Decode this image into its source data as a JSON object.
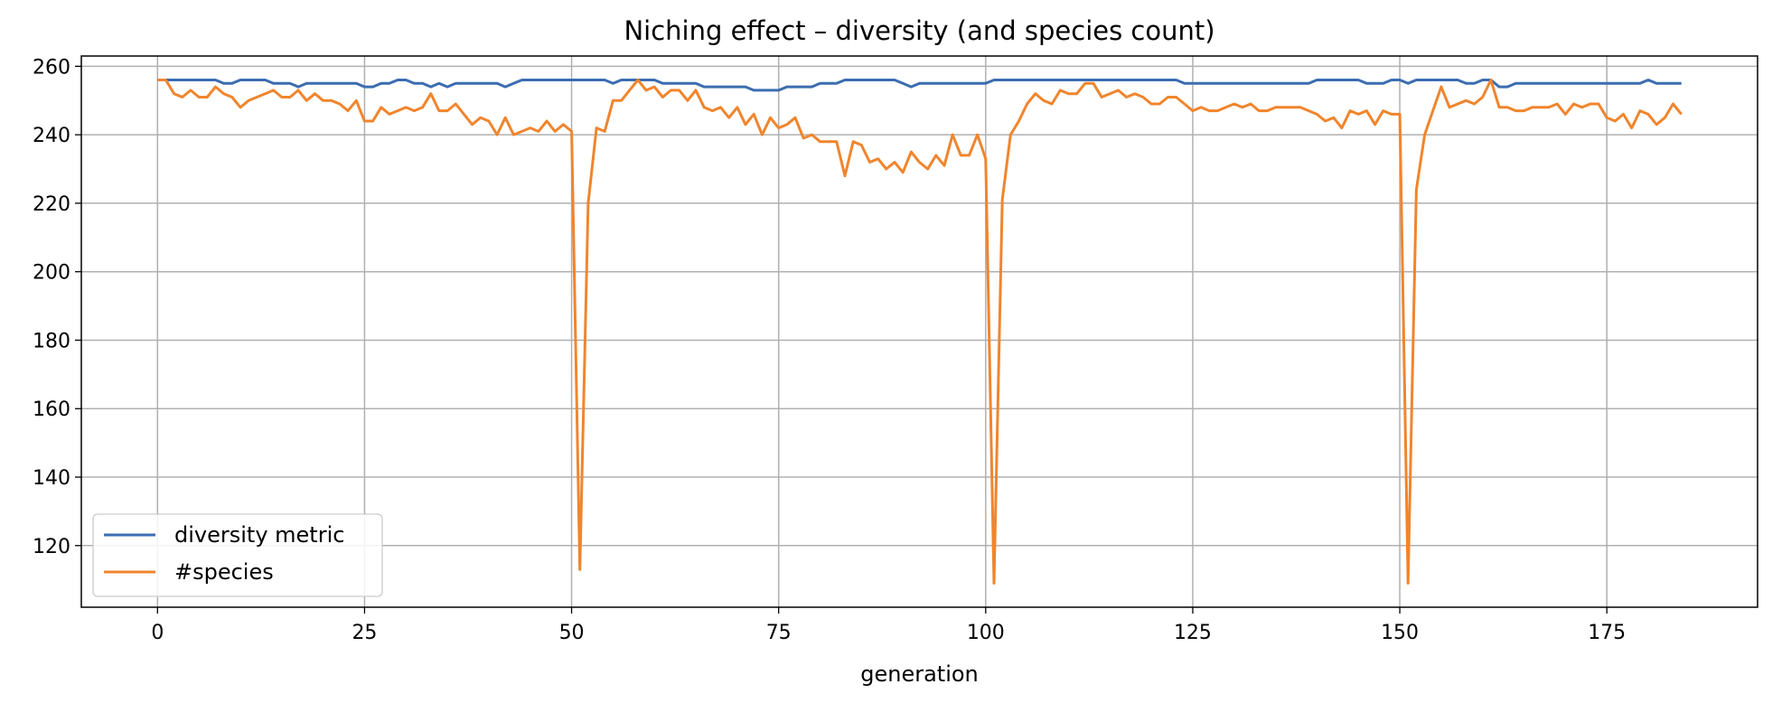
{
  "chart_data": {
    "type": "line",
    "title": "Niching effect – diversity (and species count)",
    "xlabel": "generation",
    "ylabel": "",
    "xlim": [
      -9.2,
      193.2
    ],
    "ylim": [
      102,
      263
    ],
    "xticks": [
      0,
      25,
      50,
      75,
      100,
      125,
      150,
      175
    ],
    "yticks": [
      120,
      140,
      160,
      180,
      200,
      220,
      240,
      260
    ],
    "grid": true,
    "legend_position": "lower-left",
    "series": [
      {
        "name": "diversity metric",
        "color": "#3b6db0",
        "x": [
          0,
          1,
          2,
          3,
          4,
          5,
          6,
          7,
          8,
          9,
          10,
          11,
          12,
          13,
          14,
          15,
          16,
          17,
          18,
          19,
          20,
          21,
          22,
          23,
          24,
          25,
          26,
          27,
          28,
          29,
          30,
          31,
          32,
          33,
          34,
          35,
          36,
          37,
          38,
          39,
          40,
          41,
          42,
          43,
          44,
          45,
          46,
          47,
          48,
          49,
          50,
          51,
          52,
          53,
          54,
          55,
          56,
          57,
          58,
          59,
          60,
          61,
          62,
          63,
          64,
          65,
          66,
          67,
          68,
          69,
          70,
          71,
          72,
          73,
          74,
          75,
          76,
          77,
          78,
          79,
          80,
          81,
          82,
          83,
          84,
          85,
          86,
          87,
          88,
          89,
          90,
          91,
          92,
          93,
          94,
          95,
          96,
          97,
          98,
          99,
          100,
          101,
          102,
          103,
          104,
          105,
          106,
          107,
          108,
          109,
          110,
          111,
          112,
          113,
          114,
          115,
          116,
          117,
          118,
          119,
          120,
          121,
          122,
          123,
          124,
          125,
          126,
          127,
          128,
          129,
          130,
          131,
          132,
          133,
          134,
          135,
          136,
          137,
          138,
          139,
          140,
          141,
          142,
          143,
          144,
          145,
          146,
          147,
          148,
          149,
          150,
          151,
          152,
          153,
          154,
          155,
          156,
          157,
          158,
          159,
          160,
          161,
          162,
          163,
          164,
          165,
          166,
          167,
          168,
          169,
          170,
          171,
          172,
          173,
          174,
          175,
          176,
          177,
          178,
          179,
          180,
          181,
          182,
          183,
          184
        ],
        "y": [
          256,
          256,
          256,
          256,
          256,
          256,
          256,
          256,
          255,
          255,
          256,
          256,
          256,
          256,
          255,
          255,
          255,
          254,
          255,
          255,
          255,
          255,
          255,
          255,
          255,
          254,
          254,
          255,
          255,
          256,
          256,
          255,
          255,
          254,
          255,
          254,
          255,
          255,
          255,
          255,
          255,
          255,
          254,
          255,
          256,
          256,
          256,
          256,
          256,
          256,
          256,
          256,
          256,
          256,
          256,
          255,
          256,
          256,
          256,
          256,
          256,
          255,
          255,
          255,
          255,
          255,
          254,
          254,
          254,
          254,
          254,
          254,
          253,
          253,
          253,
          253,
          254,
          254,
          254,
          254,
          255,
          255,
          255,
          256,
          256,
          256,
          256,
          256,
          256,
          256,
          255,
          254,
          255,
          255,
          255,
          255,
          255,
          255,
          255,
          255,
          255,
          256,
          256,
          256,
          256,
          256,
          256,
          256,
          256,
          256,
          256,
          256,
          256,
          256,
          256,
          256,
          256,
          256,
          256,
          256,
          256,
          256,
          256,
          256,
          255,
          255,
          255,
          255,
          255,
          255,
          255,
          255,
          255,
          255,
          255,
          255,
          255,
          255,
          255,
          255,
          256,
          256,
          256,
          256,
          256,
          256,
          255,
          255,
          255,
          256,
          256,
          255,
          256,
          256,
          256,
          256,
          256,
          256,
          255,
          255,
          256,
          256,
          254,
          254,
          255,
          255,
          255,
          255,
          255,
          255,
          255,
          255,
          255,
          255,
          255,
          255,
          255,
          255,
          255,
          255,
          256,
          255,
          255,
          255,
          255
        ]
      },
      {
        "name": "#species",
        "color": "#f0852d",
        "x": [
          0,
          1,
          2,
          3,
          4,
          5,
          6,
          7,
          8,
          9,
          10,
          11,
          12,
          13,
          14,
          15,
          16,
          17,
          18,
          19,
          20,
          21,
          22,
          23,
          24,
          25,
          26,
          27,
          28,
          29,
          30,
          31,
          32,
          33,
          34,
          35,
          36,
          37,
          38,
          39,
          40,
          41,
          42,
          43,
          44,
          45,
          46,
          47,
          48,
          49,
          50,
          51,
          52,
          53,
          54,
          55,
          56,
          57,
          58,
          59,
          60,
          61,
          62,
          63,
          64,
          65,
          66,
          67,
          68,
          69,
          70,
          71,
          72,
          73,
          74,
          75,
          76,
          77,
          78,
          79,
          80,
          81,
          82,
          83,
          84,
          85,
          86,
          87,
          88,
          89,
          90,
          91,
          92,
          93,
          94,
          95,
          96,
          97,
          98,
          99,
          100,
          101,
          102,
          103,
          104,
          105,
          106,
          107,
          108,
          109,
          110,
          111,
          112,
          113,
          114,
          115,
          116,
          117,
          118,
          119,
          120,
          121,
          122,
          123,
          124,
          125,
          126,
          127,
          128,
          129,
          130,
          131,
          132,
          133,
          134,
          135,
          136,
          137,
          138,
          139,
          140,
          141,
          142,
          143,
          144,
          145,
          146,
          147,
          148,
          149,
          150,
          151,
          152,
          153,
          154,
          155,
          156,
          157,
          158,
          159,
          160,
          161,
          162,
          163,
          164,
          165,
          166,
          167,
          168,
          169,
          170,
          171,
          172,
          173,
          174,
          175,
          176,
          177,
          178,
          179,
          180,
          181,
          182,
          183,
          184
        ],
        "y": [
          256,
          256,
          252,
          251,
          253,
          251,
          251,
          254,
          252,
          251,
          248,
          250,
          251,
          252,
          253,
          251,
          251,
          253,
          250,
          252,
          250,
          250,
          249,
          247,
          250,
          244,
          244,
          248,
          246,
          247,
          248,
          247,
          248,
          252,
          247,
          247,
          249,
          246,
          243,
          245,
          244,
          240,
          245,
          240,
          241,
          242,
          241,
          244,
          241,
          243,
          241,
          113,
          220,
          242,
          241,
          250,
          250,
          253,
          256,
          253,
          254,
          251,
          253,
          253,
          250,
          253,
          248,
          247,
          248,
          245,
          248,
          243,
          246,
          240,
          245,
          242,
          243,
          245,
          239,
          240,
          238,
          238,
          238,
          228,
          238,
          237,
          232,
          233,
          230,
          232,
          229,
          235,
          232,
          230,
          234,
          231,
          240,
          234,
          234,
          240,
          233,
          109,
          221,
          240,
          244,
          249,
          252,
          250,
          249,
          253,
          252,
          252,
          255,
          255,
          251,
          252,
          253,
          251,
          252,
          251,
          249,
          249,
          251,
          251,
          249,
          247,
          248,
          247,
          247,
          248,
          249,
          248,
          249,
          247,
          247,
          248,
          248,
          248,
          248,
          247,
          246,
          244,
          245,
          242,
          247,
          246,
          247,
          243,
          247,
          246,
          246,
          109,
          224,
          240,
          247,
          254,
          248,
          249,
          250,
          249,
          251,
          256,
          248,
          248,
          247,
          247,
          248,
          248,
          248,
          249,
          246,
          249,
          248,
          249,
          249,
          245,
          244,
          246,
          242,
          247,
          246,
          243,
          245,
          249,
          246
        ]
      }
    ]
  }
}
